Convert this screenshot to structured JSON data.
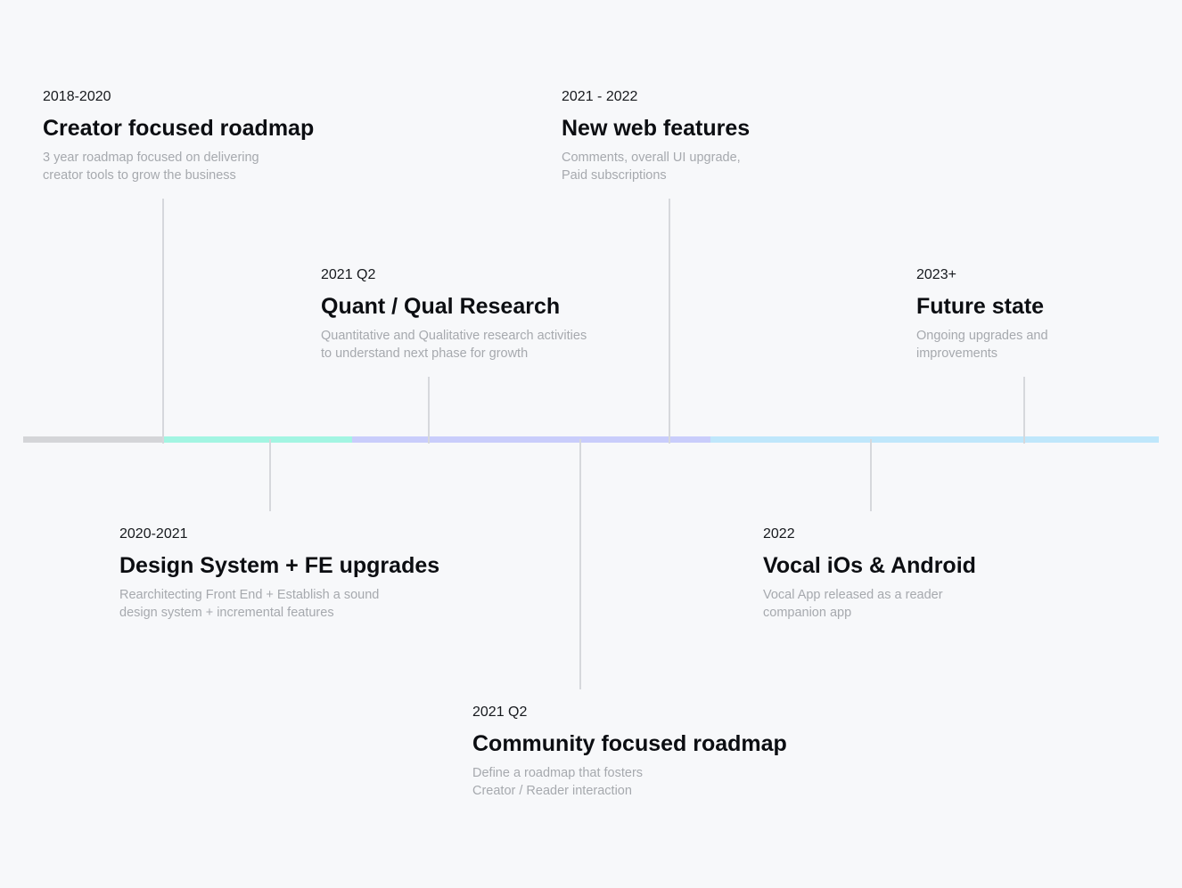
{
  "bar_colors": {
    "gray": "#d4d5d8",
    "mint": "#a3f5e2",
    "lavender": "#c9cdfb",
    "sky": "#bfe7fb"
  },
  "milestones": [
    {
      "id": "creator",
      "date": "2018-2020",
      "title": "Creator focused roadmap",
      "desc_lines": [
        "3 year roadmap focused on delivering",
        "creator tools to grow the business"
      ]
    },
    {
      "id": "design",
      "date": "2020-2021",
      "title": "Design System + FE upgrades",
      "desc_lines": [
        "Rearchitecting Front End + Establish a sound",
        "design system + incremental features"
      ]
    },
    {
      "id": "research",
      "date": "2021 Q2",
      "title": "Quant / Qual Research",
      "desc_lines": [
        "Quantitative and Qualitative research activities",
        "to understand next phase for growth"
      ]
    },
    {
      "id": "community",
      "date": "2021 Q2",
      "title": "Community focused roadmap",
      "desc_lines": [
        "Define a roadmap that fosters",
        "Creator / Reader interaction"
      ]
    },
    {
      "id": "web",
      "date": "2021 - 2022",
      "title": "New web features",
      "desc_lines": [
        "Comments, overall UI upgrade,",
        "Paid subscriptions"
      ]
    },
    {
      "id": "app",
      "date": "2022",
      "title": "Vocal iOs & Android",
      "desc_lines": [
        "Vocal App released as a reader",
        "companion app"
      ]
    },
    {
      "id": "future",
      "date": "2023+",
      "title": "Future state",
      "desc_lines": [
        "Ongoing upgrades and",
        "improvements"
      ]
    }
  ]
}
